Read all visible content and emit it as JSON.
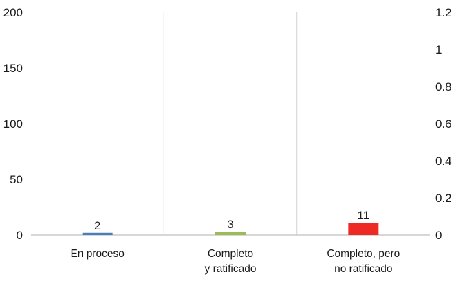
{
  "chart_data": {
    "type": "bar",
    "categories": [
      [
        "En proceso"
      ],
      [
        "Completo",
        "y ratificado"
      ],
      [
        "Completo, pero",
        "no ratificado"
      ]
    ],
    "values": [
      2,
      3,
      11
    ],
    "data_labels": [
      "2",
      "3",
      "11"
    ],
    "colors": [
      "#4a7ebb",
      "#9bbb59",
      "#ee2a24"
    ],
    "y_left": {
      "ticks": [
        "0",
        "50",
        "100",
        "150",
        "200"
      ],
      "ylim": [
        0,
        200
      ]
    },
    "y_right": {
      "ticks": [
        "0",
        "0.2",
        "0.4",
        "0.6",
        "0.8",
        "1",
        "1.2"
      ],
      "ylim": [
        0,
        1.2
      ]
    },
    "grid": "vertical separators between categories",
    "legend": "none",
    "title": "",
    "xlabel": "",
    "ylabel": ""
  }
}
